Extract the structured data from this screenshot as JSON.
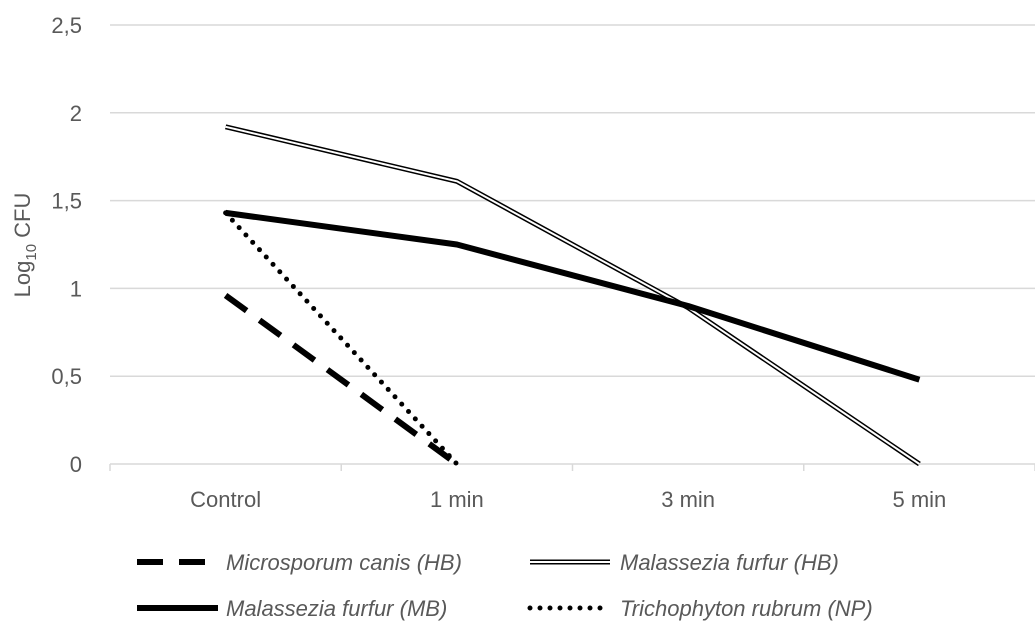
{
  "chart_data": {
    "type": "line",
    "categories": [
      "Control",
      "1 min",
      "3 min",
      "5 min"
    ],
    "ylim": [
      0,
      2.5
    ],
    "yticks": [
      "0",
      "0,5",
      "1",
      "1,5",
      "2",
      "2,5"
    ],
    "ytick_values": [
      0,
      0.5,
      1,
      1.5,
      2,
      2.5
    ],
    "ylabel_main": "Log",
    "ylabel_sub": "10",
    "ylabel_rest": " CFU",
    "xlabel": "",
    "grid": true,
    "legend_position": "bottom",
    "series": [
      {
        "name": "Microsporum canis (HB)",
        "style": "dashed",
        "color": "#000000",
        "values": [
          0.96,
          0.0,
          null,
          null
        ]
      },
      {
        "name": "Malassezia furfur (HB)",
        "style": "double",
        "color": "#000000",
        "values": [
          1.92,
          1.61,
          0.89,
          0.0
        ]
      },
      {
        "name": "Malassezia furfur (MB)",
        "style": "solid",
        "color": "#000000",
        "values": [
          1.43,
          1.25,
          0.9,
          0.48
        ]
      },
      {
        "name": "Trichophyton rubrum (NP)",
        "style": "dotted",
        "color": "#000000",
        "values": [
          1.43,
          0.0,
          null,
          null
        ]
      }
    ]
  }
}
